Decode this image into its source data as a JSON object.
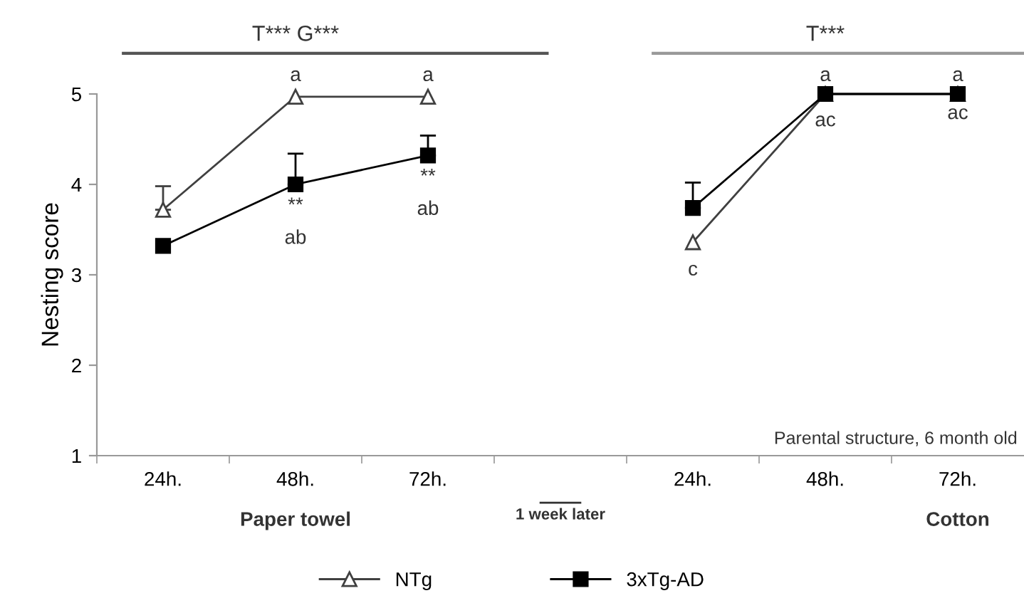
{
  "chart_data": {
    "type": "line",
    "ylabel": "Nesting score",
    "categories": [
      "24h.",
      "48h.",
      "72h.",
      null,
      "24h.",
      "48h.",
      "72h."
    ],
    "series": [
      {
        "name": "NTg",
        "color": "#404040",
        "marker": "triangle",
        "values": [
          3.72,
          4.97,
          4.97,
          null,
          3.36,
          5.0,
          5.0
        ],
        "errors": [
          [
            3.72,
            3.98
          ],
          null,
          null,
          null,
          null,
          null,
          null
        ]
      },
      {
        "name": "3xTg-AD",
        "color": "#000000",
        "marker": "square",
        "values": [
          3.32,
          4.0,
          4.32,
          null,
          3.74,
          5.0,
          5.0
        ],
        "errors": [
          null,
          [
            4.0,
            4.34
          ],
          [
            4.32,
            4.54
          ],
          null,
          [
            3.74,
            4.02
          ],
          null,
          null
        ]
      }
    ],
    "ylim": [
      1,
      5
    ],
    "yticks": [
      1,
      2,
      3,
      4,
      5
    ],
    "grid": false,
    "legend": "bottom",
    "annotations": [
      "T*** G***",
      "T***",
      "a",
      "a",
      "**",
      "ab",
      "**",
      "ab",
      "a",
      "a",
      "ac",
      "ac",
      "c",
      "Parental structure, 6 month old",
      "Paper towel",
      "1 week later",
      "Cotton"
    ]
  }
}
